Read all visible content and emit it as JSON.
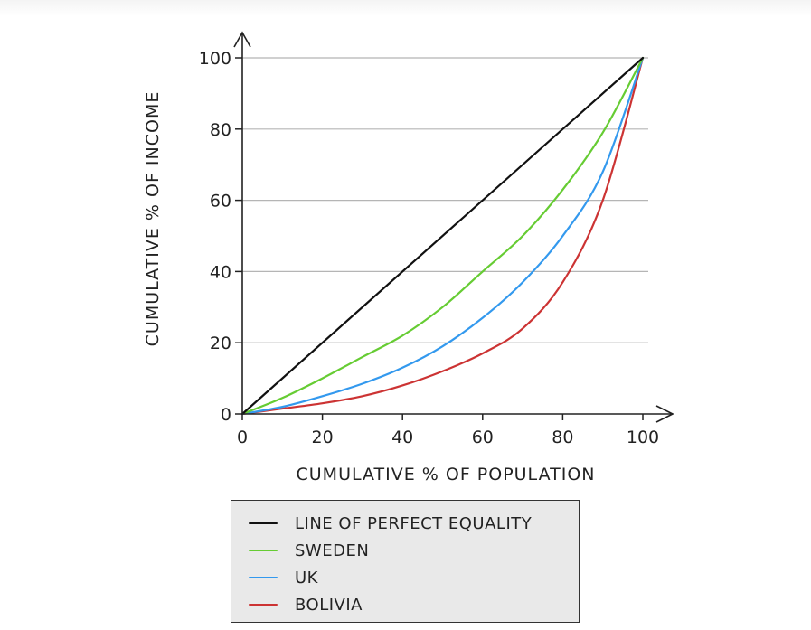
{
  "chart_data": {
    "type": "line",
    "xlabel": "CUMULATIVE % OF POPULATION",
    "ylabel": "CUMULATIVE % OF INCOME",
    "xlim": [
      0,
      100
    ],
    "ylim": [
      0,
      100
    ],
    "x_ticks": [
      "0",
      "20",
      "40",
      "60",
      "80",
      "100"
    ],
    "y_ticks": [
      "0",
      "20",
      "40",
      "60",
      "80",
      "100"
    ],
    "grid": "horizontal",
    "legend_position": "bottom",
    "series": [
      {
        "name": "LINE OF PERFECT EQUALITY",
        "color": "#111111",
        "x": [
          0,
          100
        ],
        "y": [
          0,
          100
        ]
      },
      {
        "name": "SWEDEN",
        "color": "#66cc33",
        "x": [
          0,
          10,
          20,
          30,
          40,
          50,
          60,
          70,
          80,
          90,
          100
        ],
        "y": [
          0,
          4.5,
          10,
          16,
          22,
          30,
          40,
          50,
          63,
          79,
          100
        ]
      },
      {
        "name": "UK",
        "color": "#3399ee",
        "x": [
          0,
          10,
          20,
          30,
          40,
          50,
          60,
          70,
          80,
          90,
          100
        ],
        "y": [
          0,
          2,
          5,
          8.5,
          13,
          19,
          27,
          37,
          50,
          68,
          100
        ]
      },
      {
        "name": "BOLIVIA",
        "color": "#cc3333",
        "x": [
          0,
          10,
          20,
          30,
          40,
          50,
          60,
          70,
          80,
          90,
          100
        ],
        "y": [
          0,
          1.5,
          3,
          5,
          8,
          12,
          17,
          24,
          37,
          60,
          100
        ]
      }
    ]
  }
}
